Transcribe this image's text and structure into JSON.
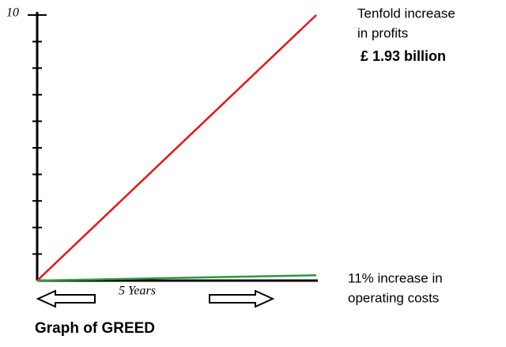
{
  "chart_data": {
    "type": "line",
    "title": "Graph of GREED",
    "x_label": "5 Years",
    "x": [
      0,
      5
    ],
    "xlim": [
      0,
      5
    ],
    "ylim": [
      0,
      10
    ],
    "yticks": [
      10
    ],
    "minor_yticks": [
      1,
      2,
      3,
      4,
      5,
      6,
      7,
      8,
      9
    ],
    "series": [
      {
        "color": "#e8161b",
        "values": [
          0,
          10
        ],
        "annotation": [
          "Tenfold increase",
          "in profits",
          "£ 1.93 billion"
        ]
      },
      {
        "color": "#2a9a3c",
        "values": [
          0,
          0.2
        ],
        "annotation": [
          "11% increase in",
          "operating costs"
        ]
      }
    ]
  }
}
